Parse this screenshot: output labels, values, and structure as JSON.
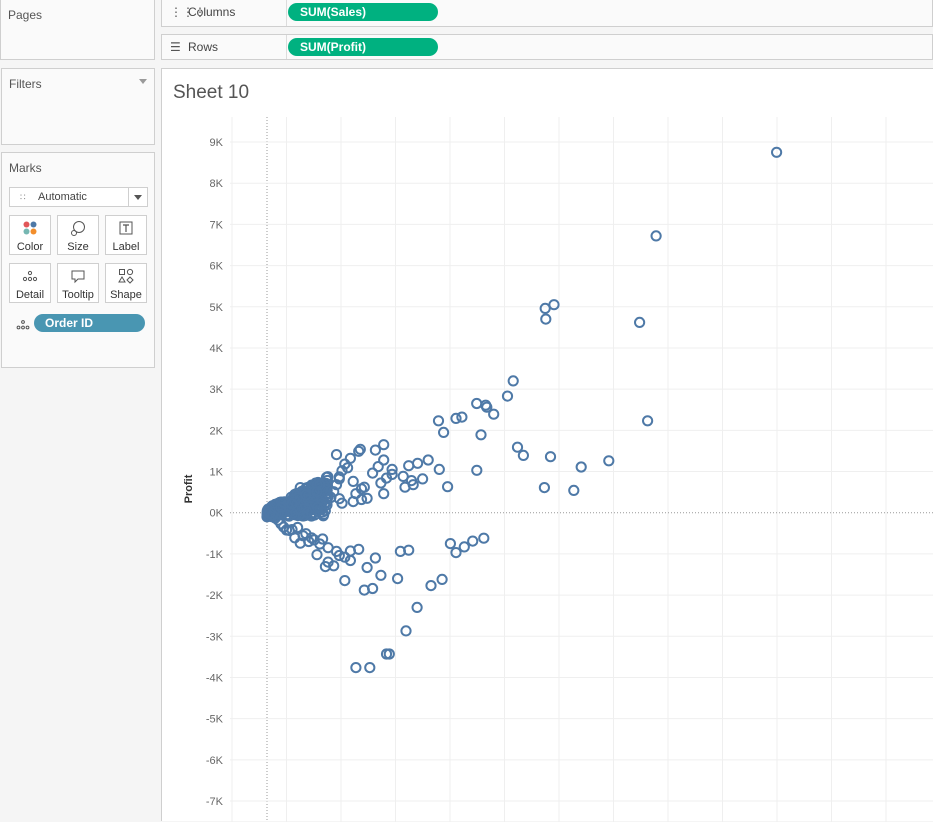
{
  "pages": {
    "title": "Pages"
  },
  "filters": {
    "title": "Filters"
  },
  "marks": {
    "title": "Marks",
    "type_dropdown": "Automatic",
    "buttons": [
      {
        "label": "Color",
        "icon": "color-icon"
      },
      {
        "label": "Size",
        "icon": "size-icon"
      },
      {
        "label": "Label",
        "icon": "label-icon"
      },
      {
        "label": "Detail",
        "icon": "detail-icon"
      },
      {
        "label": "Tooltip",
        "icon": "tooltip-icon"
      },
      {
        "label": "Shape",
        "icon": "shape-icon"
      }
    ],
    "detail_field": "Order ID"
  },
  "shelves": {
    "columns": {
      "label": "Columns",
      "pill": "SUM(Sales)"
    },
    "rows": {
      "label": "Rows",
      "pill": "SUM(Profit)"
    }
  },
  "sheet": {
    "title": "Sheet 10"
  },
  "colors": {
    "pill_green": "#00b180",
    "pill_blue": "#4996b2",
    "mark": "#4e79a7"
  },
  "chart_data": {
    "type": "scatter",
    "ylabel": "Profit",
    "xlabel": "",
    "ylim": [
      -7000,
      9000
    ],
    "y_ticks": [
      "9K",
      "8K",
      "7K",
      "6K",
      "5K",
      "4K",
      "3K",
      "2K",
      "1K",
      "0K",
      "-1K",
      "-2K",
      "-3K",
      "-4K",
      "-5K",
      "-6K",
      "-7K"
    ],
    "xlim": [
      0,
      24000
    ],
    "grid": true,
    "series": [
      {
        "x": [
          18336,
          13999,
          13406,
          10011,
          10030,
          10326,
          13693,
          8858,
          8653,
          8158,
          7871,
          7909,
          7547,
          6171,
          6799,
          7013,
          9012,
          9225,
          11306,
          11038,
          6354,
          7699,
          10201,
          12297,
          9981,
          7549,
          3357,
          5262,
          4967,
          5600,
          5420,
          6200,
          4900,
          3900,
          2800,
          6500,
          4100,
          4500,
          5200,
          4000,
          3800,
          3500,
          4300,
          5800,
          4200,
          3000,
          3100,
          2500,
          2700,
          1800,
          1700,
          2600,
          2100,
          1500,
          2300,
          1900,
          1200,
          2600,
          3200,
          3400,
          4500,
          5100,
          4200,
          3300,
          2900,
          2600,
          2400,
          2700,
          3100,
          3400,
          3600,
          4200,
          6600,
          7100,
          7400,
          7800,
          6800,
          4700,
          5100,
          3800,
          3500,
          3000,
          2400,
          2100,
          1800,
          2800,
          4300,
          3200,
          5900,
          6300,
          4800,
          3900,
          3300,
          2200,
          3600,
          4100,
          5400,
          5000,
          4400,
          3700,
          2600,
          2000,
          1500,
          1200,
          1000,
          800,
          600,
          500,
          400,
          300,
          200,
          100,
          700,
          900,
          1100,
          1300,
          1400,
          1600,
          1700,
          1900,
          2200,
          2500,
          2800,
          3000,
          600,
          1100,
          1800,
          2500,
          1400,
          900,
          500
        ],
        "y": [
          8750,
          6720,
          4620,
          4960,
          4700,
          5050,
          2230,
          3200,
          2830,
          2390,
          2610,
          2560,
          2650,
          2230,
          2290,
          2320,
          1590,
          1390,
          1110,
          540,
          1950,
          1890,
          1360,
          1260,
          610,
          1030,
          1540,
          680,
          620,
          820,
          1200,
          1050,
          880,
          1520,
          1180,
          630,
          720,
          1050,
          780,
          1120,
          960,
          620,
          840,
          1280,
          1650,
          1320,
          760,
          1410,
          1020,
          680,
          520,
          870,
          430,
          420,
          370,
          680,
          610,
          340,
          460,
          580,
          930,
          1140,
          1280,
          1490,
          1090,
          820,
          510,
          230,
          270,
          320,
          350,
          460,
          -750,
          -830,
          -690,
          -620,
          -970,
          -1600,
          -910,
          -1840,
          -1880,
          -930,
          -1290,
          -1310,
          -1020,
          -1650,
          -3430,
          -3760,
          -1770,
          -1620,
          -940,
          -1100,
          -890,
          -1200,
          -1330,
          -1520,
          -2300,
          -2870,
          -3430,
          -3760,
          -1040,
          -640,
          -700,
          -740,
          -610,
          -430,
          -350,
          -270,
          -180,
          -130,
          -60,
          -20,
          -420,
          -410,
          -360,
          -560,
          -510,
          -610,
          -660,
          -760,
          -850,
          -940,
          -1080,
          -1160,
          250,
          360,
          510,
          680,
          430,
          210,
          130
        ]
      }
    ]
  }
}
